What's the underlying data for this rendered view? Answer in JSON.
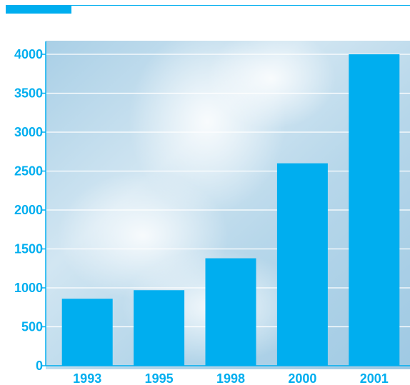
{
  "colors": {
    "accent": "#00aeef",
    "bar": "#00aeef",
    "gridline": "#ffffff",
    "axis": "#00aeef"
  },
  "chart_data": {
    "type": "bar",
    "categories": [
      "1993",
      "1995",
      "1998",
      "2000",
      "2001"
    ],
    "values": [
      860,
      970,
      1380,
      2600,
      4000
    ],
    "ylim": [
      0,
      4000
    ],
    "yticks": [
      0,
      500,
      1000,
      1500,
      2000,
      2500,
      3000,
      3500,
      4000
    ],
    "ytick_labels": [
      "0",
      "500",
      "1000",
      "1500",
      "2000",
      "2500",
      "3000",
      "3500",
      "4000"
    ],
    "grid": true,
    "title": "",
    "xlabel": "",
    "ylabel": ""
  }
}
